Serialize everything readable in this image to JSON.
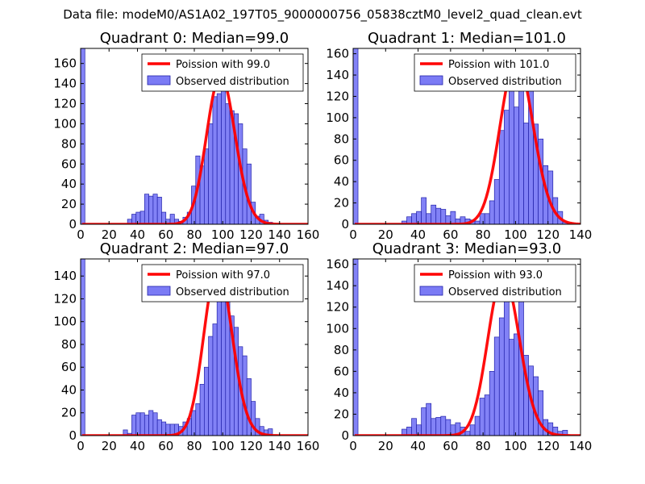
{
  "page_title": "Data file: modeM0/AS1A02_197T05_9000000756_05838cztM0_level2_quad_clean.evt",
  "colors": {
    "hist_fill": "#7b7bf5",
    "hist_edge": "#2222aa",
    "poisson_line": "#ff0000",
    "axis": "#000000"
  },
  "chart_data": [
    {
      "type": "bar",
      "title": "Quadrant 0: Median=99.0",
      "xlim": [
        0,
        160
      ],
      "ylim": [
        0,
        175
      ],
      "xticks": [
        0,
        20,
        40,
        60,
        80,
        100,
        120,
        140,
        160
      ],
      "yticks": [
        0,
        20,
        40,
        60,
        80,
        100,
        120,
        140,
        160
      ],
      "legend": {
        "location": "top-right",
        "entries": [
          "Poission with 99.0",
          "Observed distribution"
        ]
      },
      "bin_width": 3,
      "bins": [
        [
          0,
          175
        ],
        [
          33,
          5
        ],
        [
          36,
          10
        ],
        [
          39,
          12
        ],
        [
          42,
          13
        ],
        [
          45,
          30
        ],
        [
          48,
          28
        ],
        [
          51,
          30
        ],
        [
          54,
          27
        ],
        [
          57,
          12
        ],
        [
          60,
          5
        ],
        [
          63,
          10
        ],
        [
          66,
          5
        ],
        [
          69,
          3
        ],
        [
          72,
          7
        ],
        [
          75,
          12
        ],
        [
          78,
          38
        ],
        [
          81,
          68
        ],
        [
          84,
          58
        ],
        [
          87,
          75
        ],
        [
          90,
          100
        ],
        [
          93,
          127
        ],
        [
          96,
          130
        ],
        [
          99,
          148
        ],
        [
          102,
          120
        ],
        [
          105,
          113
        ],
        [
          108,
          110
        ],
        [
          111,
          100
        ],
        [
          114,
          75
        ],
        [
          117,
          60
        ],
        [
          120,
          22
        ],
        [
          123,
          8
        ],
        [
          126,
          10
        ],
        [
          129,
          4
        ],
        [
          132,
          2
        ]
      ],
      "poisson_mean": 99.0
    },
    {
      "type": "bar",
      "title": "Quadrant 1: Median=101.0",
      "xlim": [
        0,
        140
      ],
      "ylim": [
        0,
        165
      ],
      "xticks": [
        0,
        20,
        40,
        60,
        80,
        100,
        120,
        140
      ],
      "yticks": [
        0,
        20,
        40,
        60,
        80,
        100,
        120,
        140,
        160
      ],
      "legend": {
        "location": "top-right",
        "entries": [
          "Poission with 101.0",
          "Observed distribution"
        ]
      },
      "bin_width": 3,
      "bins": [
        [
          0,
          165
        ],
        [
          30,
          3
        ],
        [
          33,
          7
        ],
        [
          36,
          10
        ],
        [
          39,
          12
        ],
        [
          42,
          25
        ],
        [
          45,
          10
        ],
        [
          48,
          18
        ],
        [
          51,
          15
        ],
        [
          54,
          14
        ],
        [
          57,
          8
        ],
        [
          60,
          12
        ],
        [
          63,
          5
        ],
        [
          66,
          7
        ],
        [
          69,
          5
        ],
        [
          72,
          4
        ],
        [
          75,
          3
        ],
        [
          78,
          10
        ],
        [
          81,
          10
        ],
        [
          84,
          22
        ],
        [
          87,
          42
        ],
        [
          90,
          88
        ],
        [
          93,
          107
        ],
        [
          96,
          127
        ],
        [
          99,
          110
        ],
        [
          102,
          155
        ],
        [
          105,
          95
        ],
        [
          108,
          142
        ],
        [
          111,
          94
        ],
        [
          114,
          80
        ],
        [
          117,
          55
        ],
        [
          120,
          50
        ],
        [
          123,
          25
        ],
        [
          126,
          12
        ],
        [
          129,
          2
        ]
      ],
      "poisson_mean": 101.0
    },
    {
      "type": "bar",
      "title": "Quadrant 2: Median=97.0",
      "xlim": [
        0,
        160
      ],
      "ylim": [
        0,
        155
      ],
      "xticks": [
        0,
        20,
        40,
        60,
        80,
        100,
        120,
        140,
        160
      ],
      "yticks": [
        0,
        20,
        40,
        60,
        80,
        100,
        120,
        140
      ],
      "legend": {
        "location": "top-right",
        "entries": [
          "Poission with 97.0",
          "Observed distribution"
        ]
      },
      "bin_width": 3,
      "bins": [
        [
          0,
          155
        ],
        [
          30,
          5
        ],
        [
          33,
          2
        ],
        [
          36,
          18
        ],
        [
          39,
          20
        ],
        [
          42,
          20
        ],
        [
          45,
          18
        ],
        [
          48,
          22
        ],
        [
          51,
          20
        ],
        [
          54,
          14
        ],
        [
          57,
          12
        ],
        [
          60,
          10
        ],
        [
          63,
          10
        ],
        [
          66,
          10
        ],
        [
          69,
          8
        ],
        [
          72,
          12
        ],
        [
          75,
          15
        ],
        [
          78,
          22
        ],
        [
          81,
          28
        ],
        [
          84,
          45
        ],
        [
          87,
          60
        ],
        [
          90,
          87
        ],
        [
          93,
          98
        ],
        [
          96,
          140
        ],
        [
          99,
          120
        ],
        [
          102,
          148
        ],
        [
          105,
          105
        ],
        [
          108,
          95
        ],
        [
          111,
          78
        ],
        [
          114,
          70
        ],
        [
          117,
          50
        ],
        [
          120,
          30
        ],
        [
          123,
          15
        ],
        [
          126,
          8
        ],
        [
          129,
          5
        ],
        [
          132,
          6
        ]
      ],
      "poisson_mean": 97.0
    },
    {
      "type": "bar",
      "title": "Quadrant 3: Median=93.0",
      "xlim": [
        0,
        140
      ],
      "ylim": [
        0,
        165
      ],
      "xticks": [
        0,
        20,
        40,
        60,
        80,
        100,
        120,
        140
      ],
      "yticks": [
        0,
        20,
        40,
        60,
        80,
        100,
        120,
        140,
        160
      ],
      "legend": {
        "location": "top-right",
        "entries": [
          "Poission with 93.0",
          "Observed distribution"
        ]
      },
      "bin_width": 3,
      "bins": [
        [
          0,
          165
        ],
        [
          30,
          6
        ],
        [
          33,
          8
        ],
        [
          36,
          16
        ],
        [
          39,
          10
        ],
        [
          42,
          26
        ],
        [
          45,
          30
        ],
        [
          48,
          16
        ],
        [
          51,
          17
        ],
        [
          54,
          18
        ],
        [
          57,
          15
        ],
        [
          60,
          10
        ],
        [
          63,
          12
        ],
        [
          66,
          8
        ],
        [
          69,
          4
        ],
        [
          72,
          10
        ],
        [
          75,
          18
        ],
        [
          78,
          35
        ],
        [
          81,
          38
        ],
        [
          84,
          60
        ],
        [
          87,
          92
        ],
        [
          90,
          110
        ],
        [
          93,
          150
        ],
        [
          96,
          90
        ],
        [
          99,
          95
        ],
        [
          102,
          130
        ],
        [
          105,
          75
        ],
        [
          108,
          65
        ],
        [
          111,
          55
        ],
        [
          114,
          42
        ],
        [
          117,
          15
        ],
        [
          120,
          12
        ],
        [
          123,
          8
        ],
        [
          126,
          4
        ],
        [
          129,
          5
        ]
      ],
      "poisson_mean": 93.0
    }
  ]
}
